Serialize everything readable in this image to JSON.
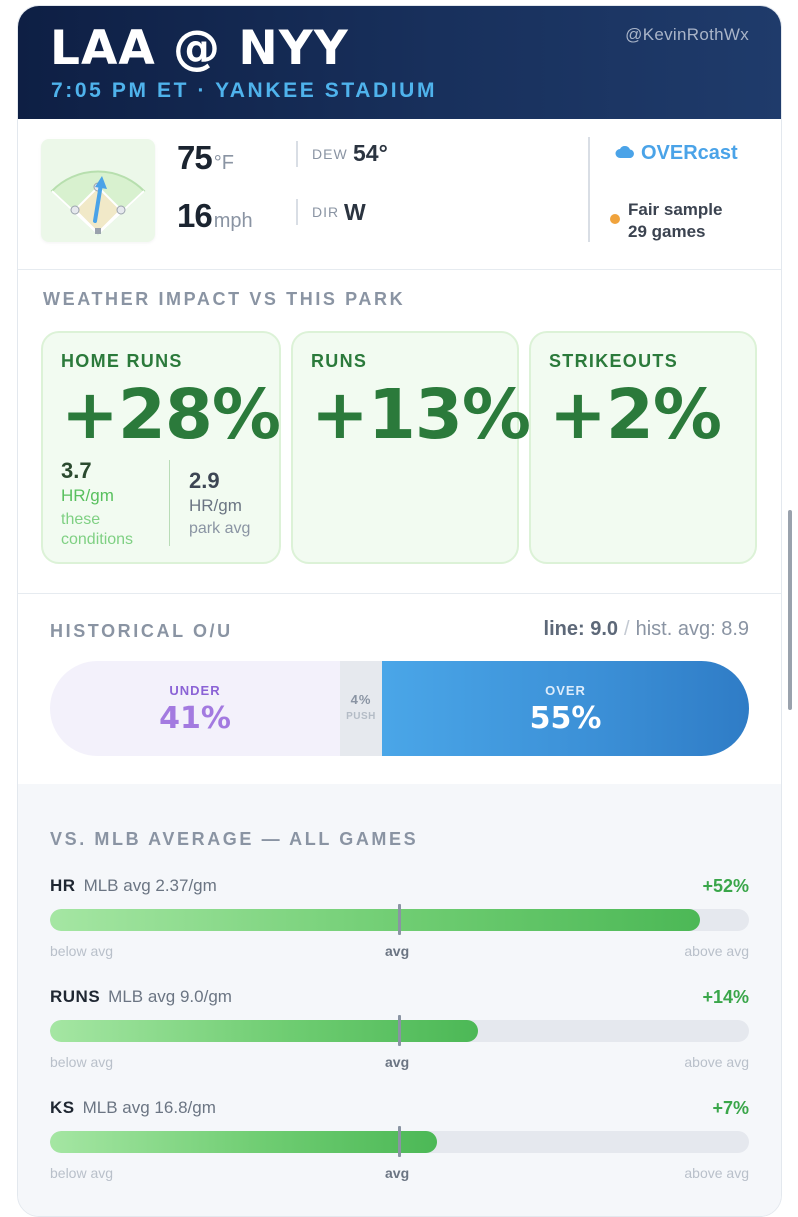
{
  "header": {
    "matchup": "LAA @ NYY",
    "handle": "@KevinRothWx",
    "subline": "7:05 PM ET · YANKEE STADIUM"
  },
  "weather": {
    "temp": "75",
    "temp_unit": "°F",
    "wind_speed": "16",
    "wind_unit": "mph",
    "dew_label": "DEW",
    "dew_value": "54°",
    "dir_label": "DIR",
    "dir_value": "W",
    "cast_label": "OVERcast",
    "sample_line1": "Fair sample",
    "sample_line2": "29 games",
    "icons": [
      "baseball-field-icon",
      "wind-arrow-icon",
      "cloud-icon",
      "sample-dot-icon"
    ]
  },
  "impact": {
    "title": "WEATHER IMPACT VS THIS PARK",
    "cards": [
      {
        "label": "HOME RUNS",
        "value": "+28%"
      },
      {
        "label": "RUNS",
        "value": "+13%"
      },
      {
        "label": "STRIKEOUTS",
        "value": "+2%"
      }
    ],
    "hr_this": {
      "value": "3.7",
      "unit": "HR/gm",
      "desc": "these conditions"
    },
    "hr_park": {
      "value": "2.9",
      "unit": "HR/gm",
      "desc": "park avg"
    }
  },
  "historical": {
    "title": "HISTORICAL O/U",
    "line_label": "line: 9.0",
    "sep": "/",
    "hist_avg": "hist. avg: 8.9",
    "under_label": "UNDER",
    "under_value": "41%",
    "push_value": "4%",
    "push_label": "PUSH",
    "over_label": "OVER",
    "over_value": "55%",
    "shares": {
      "under": 41,
      "push": 4,
      "over": 55
    }
  },
  "mlb": {
    "title": "VS. MLB AVERAGE — ALL GAMES",
    "rows": [
      {
        "name": "HR",
        "sub": "MLB avg 2.37/gm",
        "pct": "+52%",
        "fill": 0.93
      },
      {
        "name": "RUNS",
        "sub": "MLB avg 9.0/gm",
        "pct": "+14%",
        "fill": 0.613
      },
      {
        "name": "KS",
        "sub": "MLB avg 16.8/gm",
        "pct": "+7%",
        "fill": 0.553
      }
    ],
    "below_label": "below avg",
    "avg_label": "avg",
    "above_label": "above avg"
  },
  "colors": {
    "header_bg": "#0e1f44",
    "accent_blue": "#4fb3ec",
    "positive_green": "#2b7a3b",
    "under_purple": "#a37ae0"
  }
}
